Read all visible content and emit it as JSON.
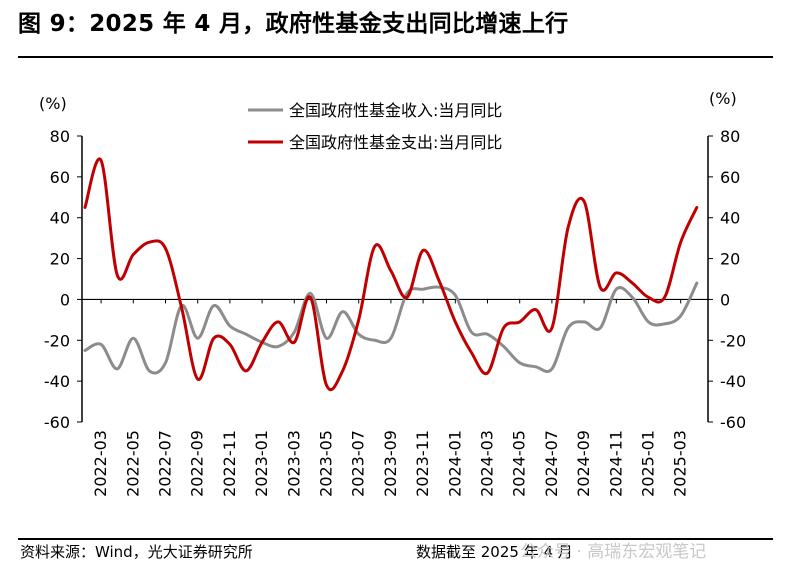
{
  "header": {
    "title": "图 9：2025 年 4 月，政府性基金支出同比增速上行"
  },
  "footer": {
    "source": "资料来源：Wind，光大证券研究所",
    "as_of": "数据截至 2025 年 4 月",
    "watermark": "公众号 · 高瑞东宏观笔记"
  },
  "chart_data": {
    "type": "line",
    "left_unit": "(%)",
    "right_unit": "(%)",
    "ylim": [
      -60,
      80
    ],
    "yticks": [
      80,
      60,
      40,
      20,
      0,
      -20,
      -40,
      -60
    ],
    "grid": false,
    "legend_position": "top",
    "x_tick_labels": [
      "2022-03",
      "2022-05",
      "2022-07",
      "2022-09",
      "2022-11",
      "2023-01",
      "2023-03",
      "2023-05",
      "2023-07",
      "2023-09",
      "2023-11",
      "2024-01",
      "2024-03",
      "2024-05",
      "2024-07",
      "2024-09",
      "2024-11",
      "2025-01",
      "2025-03"
    ],
    "x": [
      "2022-02",
      "2022-03",
      "2022-04",
      "2022-05",
      "2022-06",
      "2022-07",
      "2022-08",
      "2022-09",
      "2022-10",
      "2022-11",
      "2022-12",
      "2023-01",
      "2023-02",
      "2023-03",
      "2023-04",
      "2023-05",
      "2023-06",
      "2023-07",
      "2023-08",
      "2023-09",
      "2023-10",
      "2023-11",
      "2023-12",
      "2024-01",
      "2024-02",
      "2024-03",
      "2024-04",
      "2024-05",
      "2024-06",
      "2024-07",
      "2024-08",
      "2024-09",
      "2024-10",
      "2024-11",
      "2024-12",
      "2025-01",
      "2025-02",
      "2025-03",
      "2025-04"
    ],
    "series": [
      {
        "name": "全国政府性基金收入:当月同比",
        "color": "#8c8c8c",
        "values": [
          -25,
          -22,
          -34,
          -19,
          -35,
          -31,
          -3,
          -19,
          -3,
          -13,
          -17,
          -21,
          -23,
          -16,
          3,
          -19,
          -6,
          -17,
          -20,
          -19,
          3,
          5,
          6,
          2,
          -16,
          -17,
          -23,
          -31,
          -33,
          -34,
          -14,
          -11,
          -14,
          5,
          1,
          -11,
          -12,
          -8,
          8
        ]
      },
      {
        "name": "全国政府性基金支出:当月同比",
        "color": "#c00000",
        "values": [
          45,
          68,
          12,
          22,
          28,
          25,
          -4,
          -39,
          -19,
          -22,
          -35,
          -21,
          -11,
          -21,
          1,
          -42,
          -35,
          -10,
          26,
          14,
          1,
          24,
          9,
          -11,
          -26,
          -36,
          -14,
          -11,
          -5,
          -14,
          35,
          48,
          6,
          13,
          8,
          1,
          1,
          28,
          45
        ]
      }
    ]
  }
}
